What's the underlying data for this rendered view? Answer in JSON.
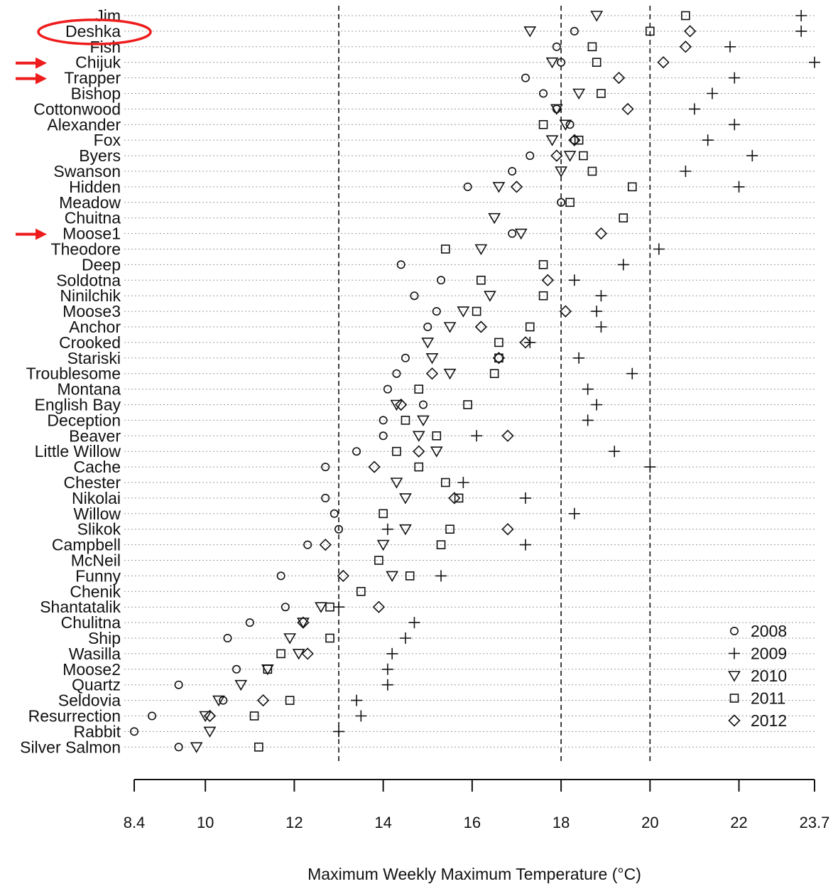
{
  "chart_data": {
    "type": "scatter",
    "xlabel": "Maximum Weekly Maximum Temperature (°C)",
    "xlim": [
      8.4,
      23.7
    ],
    "xticks": [
      "8.4",
      "10",
      "12",
      "14",
      "16",
      "18",
      "20",
      "22",
      "23.7"
    ],
    "xtick_values": [
      8.4,
      10,
      12,
      14,
      16,
      18,
      20,
      22,
      23.7
    ],
    "reference_lines": [
      13,
      18,
      20
    ],
    "legend_position": "bottom-right",
    "series": [
      {
        "name": "2008",
        "marker": "circle"
      },
      {
        "name": "2009",
        "marker": "plus"
      },
      {
        "name": "2010",
        "marker": "triangle-down"
      },
      {
        "name": "2011",
        "marker": "square"
      },
      {
        "name": "2012",
        "marker": "diamond"
      }
    ],
    "sites": [
      {
        "name": "Jim",
        "values": [
          null,
          23.4,
          18.8,
          20.8,
          null
        ]
      },
      {
        "name": "Deshka",
        "values": [
          18.3,
          23.4,
          17.3,
          20.0,
          20.9
        ],
        "circled": true
      },
      {
        "name": "Fish",
        "values": [
          17.9,
          21.8,
          null,
          18.7,
          20.8
        ]
      },
      {
        "name": "Chijuk",
        "values": [
          18.0,
          23.7,
          17.8,
          18.8,
          20.3
        ],
        "arrow": true
      },
      {
        "name": "Trapper",
        "values": [
          17.2,
          21.9,
          null,
          null,
          19.3
        ],
        "arrow": true
      },
      {
        "name": "Bishop",
        "values": [
          17.6,
          21.4,
          18.4,
          18.9,
          null
        ]
      },
      {
        "name": "Cottonwood",
        "values": [
          17.9,
          21.0,
          17.9,
          null,
          19.5
        ]
      },
      {
        "name": "Alexander",
        "values": [
          18.2,
          21.9,
          18.1,
          17.6,
          null
        ]
      },
      {
        "name": "Fox",
        "values": [
          18.3,
          21.3,
          17.8,
          18.4,
          18.3
        ]
      },
      {
        "name": "Byers",
        "values": [
          17.3,
          22.3,
          18.2,
          18.5,
          17.9
        ]
      },
      {
        "name": "Swanson",
        "values": [
          16.9,
          20.8,
          18.0,
          18.7,
          null
        ]
      },
      {
        "name": "Hidden",
        "values": [
          15.9,
          22.0,
          16.6,
          19.6,
          17.0
        ]
      },
      {
        "name": "Meadow",
        "values": [
          18.0,
          null,
          null,
          18.2,
          null
        ]
      },
      {
        "name": "Chuitna",
        "values": [
          null,
          null,
          16.5,
          19.4,
          null
        ]
      },
      {
        "name": "Moose1",
        "values": [
          16.9,
          null,
          17.1,
          null,
          18.9
        ],
        "arrow": true
      },
      {
        "name": "Theodore",
        "values": [
          null,
          20.2,
          16.2,
          15.4,
          null
        ]
      },
      {
        "name": "Deep",
        "values": [
          14.4,
          19.4,
          null,
          17.6,
          null
        ]
      },
      {
        "name": "Soldotna",
        "values": [
          15.3,
          18.3,
          null,
          16.2,
          17.7
        ]
      },
      {
        "name": "Ninilchik",
        "values": [
          14.7,
          18.9,
          16.4,
          17.6,
          null
        ]
      },
      {
        "name": "Moose3",
        "values": [
          15.2,
          18.8,
          15.8,
          16.1,
          18.1
        ]
      },
      {
        "name": "Anchor",
        "values": [
          15.0,
          18.9,
          15.5,
          17.3,
          16.2
        ]
      },
      {
        "name": "Crooked",
        "values": [
          null,
          17.3,
          15.0,
          16.6,
          17.2
        ]
      },
      {
        "name": "Stariski",
        "values": [
          14.5,
          18.4,
          15.1,
          16.6,
          16.6
        ]
      },
      {
        "name": "Troublesome",
        "values": [
          14.3,
          19.6,
          15.5,
          16.5,
          15.1
        ]
      },
      {
        "name": "Montana",
        "values": [
          14.1,
          18.6,
          null,
          14.8,
          null
        ]
      },
      {
        "name": "English Bay",
        "values": [
          14.9,
          18.8,
          14.3,
          15.9,
          14.4
        ]
      },
      {
        "name": "Deception",
        "values": [
          14.0,
          18.6,
          14.9,
          14.5,
          null
        ]
      },
      {
        "name": "Beaver",
        "values": [
          14.0,
          16.1,
          14.8,
          15.2,
          16.8
        ]
      },
      {
        "name": "Little Willow",
        "values": [
          13.4,
          19.2,
          15.2,
          14.3,
          14.8
        ]
      },
      {
        "name": "Cache",
        "values": [
          12.7,
          20.0,
          null,
          14.8,
          13.8
        ]
      },
      {
        "name": "Chester",
        "values": [
          null,
          15.8,
          14.3,
          15.4,
          null
        ]
      },
      {
        "name": "Nikolai",
        "values": [
          12.7,
          17.2,
          14.5,
          15.7,
          15.6
        ]
      },
      {
        "name": "Willow",
        "values": [
          12.9,
          18.3,
          null,
          14.0,
          null
        ]
      },
      {
        "name": "Slikok",
        "values": [
          13.0,
          14.1,
          14.5,
          15.5,
          16.8
        ]
      },
      {
        "name": "Campbell",
        "values": [
          12.3,
          17.2,
          14.0,
          15.3,
          12.7
        ]
      },
      {
        "name": "McNeil",
        "values": [
          null,
          null,
          null,
          13.9,
          null
        ]
      },
      {
        "name": "Funny",
        "values": [
          11.7,
          15.3,
          14.2,
          14.6,
          13.1
        ]
      },
      {
        "name": "Chenik",
        "values": [
          null,
          null,
          null,
          13.5,
          null
        ]
      },
      {
        "name": "Shantatalik",
        "values": [
          11.8,
          13.0,
          12.6,
          12.8,
          13.9
        ]
      },
      {
        "name": "Chulitna",
        "values": [
          11.0,
          14.7,
          12.2,
          null,
          12.2
        ]
      },
      {
        "name": "Ship",
        "values": [
          10.5,
          14.5,
          11.9,
          12.8,
          null
        ]
      },
      {
        "name": "Wasilla",
        "values": [
          null,
          14.2,
          12.1,
          11.7,
          12.3
        ]
      },
      {
        "name": "Moose2",
        "values": [
          10.7,
          14.1,
          11.4,
          11.4,
          null
        ]
      },
      {
        "name": "Quartz",
        "values": [
          9.4,
          14.1,
          10.8,
          null,
          null
        ]
      },
      {
        "name": "Seldovia",
        "values": [
          10.4,
          13.4,
          10.3,
          11.9,
          11.3
        ]
      },
      {
        "name": "Resurrection",
        "values": [
          8.8,
          13.5,
          10.0,
          11.1,
          10.1
        ]
      },
      {
        "name": "Rabbit",
        "values": [
          8.4,
          13.0,
          10.1,
          null,
          null
        ]
      },
      {
        "name": "Silver Salmon",
        "values": [
          9.4,
          null,
          9.8,
          11.2,
          null
        ]
      }
    ]
  }
}
